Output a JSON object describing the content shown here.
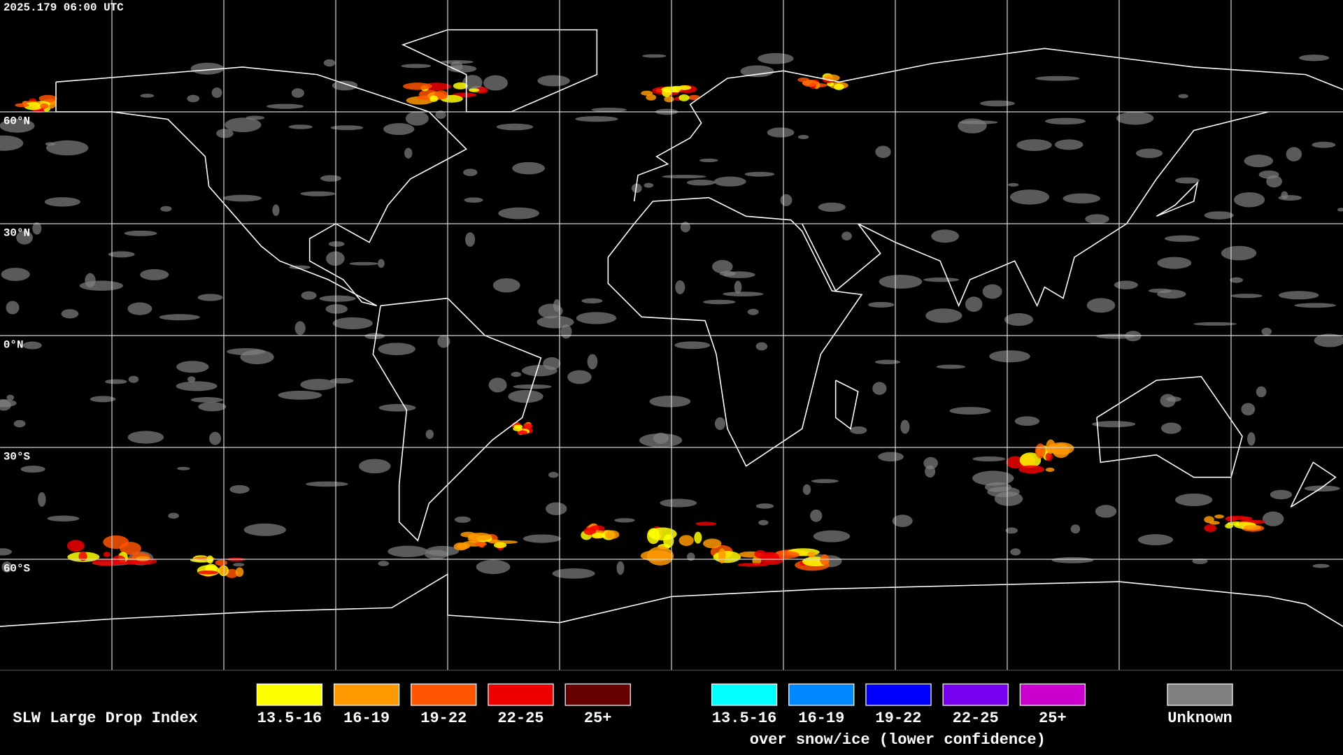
{
  "timestamp": "2025.179 06:00 UTC",
  "latitude_labels": [
    "60°N",
    "30°N",
    "0°N",
    "30°S",
    "60°S"
  ],
  "legend": {
    "title": "SLW Large Drop Index",
    "liquid": [
      {
        "label": "13.5-16",
        "color": "#ffff00"
      },
      {
        "label": "16-19",
        "color": "#ff9900"
      },
      {
        "label": "19-22",
        "color": "#ff5500"
      },
      {
        "label": "22-25",
        "color": "#ee0000"
      },
      {
        "label": "25+",
        "color": "#660000"
      }
    ],
    "snow_ice": [
      {
        "label": "13.5-16",
        "color": "#00ffff"
      },
      {
        "label": "16-19",
        "color": "#0088ff"
      },
      {
        "label": "19-22",
        "color": "#0000ff"
      },
      {
        "label": "22-25",
        "color": "#7700ee"
      },
      {
        "label": "25+",
        "color": "#cc00cc"
      }
    ],
    "snow_ice_note": "over snow/ice (lower confidence)",
    "unknown": {
      "label": "Unknown",
      "color": "#808080"
    }
  }
}
